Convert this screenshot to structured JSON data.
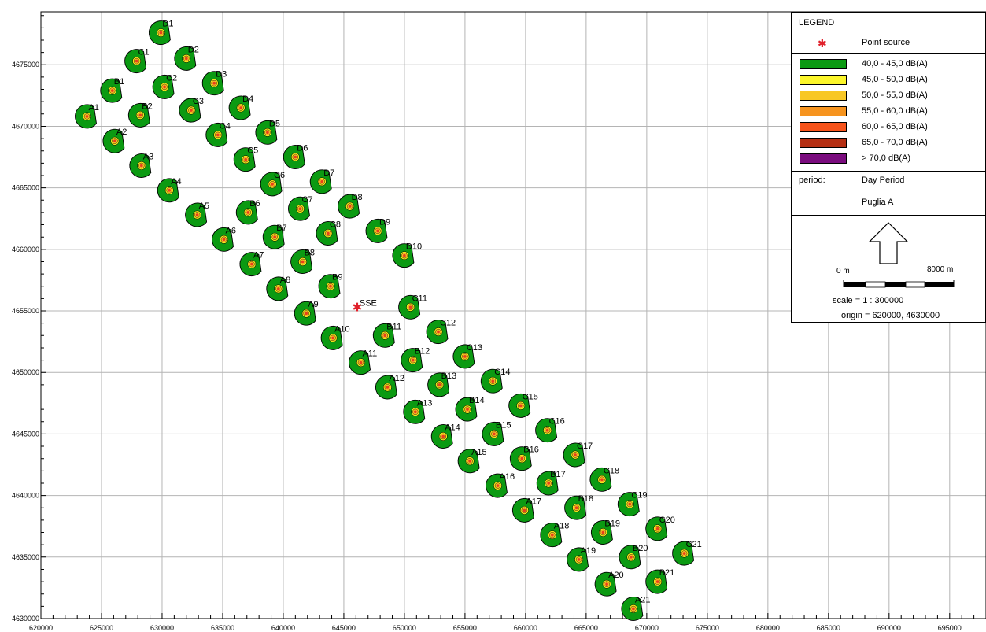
{
  "map": {
    "x_ticks": [
      "620000",
      "625000",
      "630000",
      "635000",
      "640000",
      "645000",
      "650000",
      "655000",
      "660000",
      "665000",
      "670000",
      "675000",
      "680000",
      "685000",
      "690000",
      "695000"
    ],
    "y_ticks": [
      "4630000",
      "4635000",
      "4640000",
      "4645000",
      "4650000",
      "4655000",
      "4660000",
      "4665000",
      "4670000",
      "4675000"
    ],
    "x_range": [
      620000,
      698000
    ],
    "y_range": [
      4630000,
      4679300
    ],
    "grid": true,
    "marker_colors": {
      "outer": "#0b9a12",
      "ring1": "#f4ea1a",
      "ring2": "#f6b526",
      "center": "#e8401b",
      "outline": "#000000"
    },
    "source": {
      "label": "SSE",
      "x": 646100,
      "y": 4655300,
      "color": "#e0202a"
    },
    "receivers": [
      {
        "id": "D1",
        "x": 629900,
        "y": 4677600
      },
      {
        "id": "D2",
        "x": 632000,
        "y": 4675500
      },
      {
        "id": "D3",
        "x": 634300,
        "y": 4673500
      },
      {
        "id": "D4",
        "x": 636500,
        "y": 4671500
      },
      {
        "id": "D5",
        "x": 638700,
        "y": 4669500
      },
      {
        "id": "D6",
        "x": 641000,
        "y": 4667500
      },
      {
        "id": "D7",
        "x": 643200,
        "y": 4665500
      },
      {
        "id": "D8",
        "x": 645500,
        "y": 4663500
      },
      {
        "id": "D9",
        "x": 647800,
        "y": 4661500
      },
      {
        "id": "D10",
        "x": 650000,
        "y": 4659500
      },
      {
        "id": "C1",
        "x": 627900,
        "y": 4675300
      },
      {
        "id": "C2",
        "x": 630200,
        "y": 4673200
      },
      {
        "id": "C3",
        "x": 632400,
        "y": 4671300
      },
      {
        "id": "C4",
        "x": 634600,
        "y": 4669300
      },
      {
        "id": "C5",
        "x": 636900,
        "y": 4667300
      },
      {
        "id": "C6",
        "x": 639100,
        "y": 4665300
      },
      {
        "id": "C7",
        "x": 641400,
        "y": 4663300
      },
      {
        "id": "C8",
        "x": 643700,
        "y": 4661300
      },
      {
        "id": "C11",
        "x": 650500,
        "y": 4655300
      },
      {
        "id": "C12",
        "x": 652800,
        "y": 4653300
      },
      {
        "id": "C13",
        "x": 655000,
        "y": 4651300
      },
      {
        "id": "C14",
        "x": 657300,
        "y": 4649300
      },
      {
        "id": "C15",
        "x": 659600,
        "y": 4647300
      },
      {
        "id": "C16",
        "x": 661800,
        "y": 4645300
      },
      {
        "id": "C17",
        "x": 664100,
        "y": 4643300
      },
      {
        "id": "C18",
        "x": 666300,
        "y": 4641300
      },
      {
        "id": "C19",
        "x": 668600,
        "y": 4639300
      },
      {
        "id": "C20",
        "x": 670900,
        "y": 4637300
      },
      {
        "id": "C21",
        "x": 673100,
        "y": 4635300
      },
      {
        "id": "B1",
        "x": 625900,
        "y": 4672900
      },
      {
        "id": "B2",
        "x": 628200,
        "y": 4670900
      },
      {
        "id": "B6",
        "x": 637100,
        "y": 4663000
      },
      {
        "id": "B7",
        "x": 639300,
        "y": 4661000
      },
      {
        "id": "B8",
        "x": 641600,
        "y": 4659000
      },
      {
        "id": "B9",
        "x": 643900,
        "y": 4657000
      },
      {
        "id": "B11",
        "x": 648400,
        "y": 4653000
      },
      {
        "id": "B12",
        "x": 650700,
        "y": 4651000
      },
      {
        "id": "B13",
        "x": 652900,
        "y": 4649000
      },
      {
        "id": "B14",
        "x": 655200,
        "y": 4647000
      },
      {
        "id": "B15",
        "x": 657400,
        "y": 4645000
      },
      {
        "id": "B16",
        "x": 659700,
        "y": 4643000
      },
      {
        "id": "B17",
        "x": 661900,
        "y": 4641000
      },
      {
        "id": "B18",
        "x": 664200,
        "y": 4639000
      },
      {
        "id": "B19",
        "x": 666400,
        "y": 4637000
      },
      {
        "id": "B20",
        "x": 668700,
        "y": 4635000
      },
      {
        "id": "B21",
        "x": 670900,
        "y": 4633000
      },
      {
        "id": "A1",
        "x": 623800,
        "y": 4670800
      },
      {
        "id": "A2",
        "x": 626100,
        "y": 4668800
      },
      {
        "id": "A3",
        "x": 628300,
        "y": 4666800
      },
      {
        "id": "A4",
        "x": 630600,
        "y": 4664800
      },
      {
        "id": "A5",
        "x": 632900,
        "y": 4662800
      },
      {
        "id": "A6",
        "x": 635100,
        "y": 4660800
      },
      {
        "id": "A7",
        "x": 637400,
        "y": 4658800
      },
      {
        "id": "A8",
        "x": 639600,
        "y": 4656800
      },
      {
        "id": "A9",
        "x": 641900,
        "y": 4654800
      },
      {
        "id": "A10",
        "x": 644100,
        "y": 4652800
      },
      {
        "id": "A11",
        "x": 646400,
        "y": 4650800
      },
      {
        "id": "A12",
        "x": 648600,
        "y": 4648800
      },
      {
        "id": "A13",
        "x": 650900,
        "y": 4646800
      },
      {
        "id": "A14",
        "x": 653200,
        "y": 4644800
      },
      {
        "id": "A15",
        "x": 655400,
        "y": 4642800
      },
      {
        "id": "A16",
        "x": 657700,
        "y": 4640800
      },
      {
        "id": "A17",
        "x": 659900,
        "y": 4638800
      },
      {
        "id": "A18",
        "x": 662200,
        "y": 4636800
      },
      {
        "id": "A19",
        "x": 664400,
        "y": 4634800
      },
      {
        "id": "A20",
        "x": 666700,
        "y": 4632800
      },
      {
        "id": "A21",
        "x": 668900,
        "y": 4630800
      }
    ]
  },
  "legend": {
    "title": "LEGEND",
    "point_source_symbol": "✱",
    "point_source_label": "Point source",
    "ranges": [
      {
        "label": "40,0 - 45,0 dB(A)",
        "color": "#0b9a12"
      },
      {
        "label": "45,0 - 50,0 dB(A)",
        "color": "#fbf52a"
      },
      {
        "label": "50,0 - 55,0 dB(A)",
        "color": "#f8c724"
      },
      {
        "label": "55,0 - 60,0 dB(A)",
        "color": "#f6941f"
      },
      {
        "label": "60,0 - 65,0 dB(A)",
        "color": "#f6531b"
      },
      {
        "label": "65,0 - 70,0 dB(A)",
        "color": "#b42e12"
      },
      {
        "label": "> 70,0 dB(A)",
        "color": "#7a0c7e"
      }
    ],
    "period_label": "period:",
    "period_value": "Day Period",
    "site_name": "Puglia A",
    "scale_start": "0 m",
    "scale_end": "8000 m",
    "scale_text": "scale = 1 : 300000",
    "origin_text": "origin = 620000, 4630000"
  }
}
